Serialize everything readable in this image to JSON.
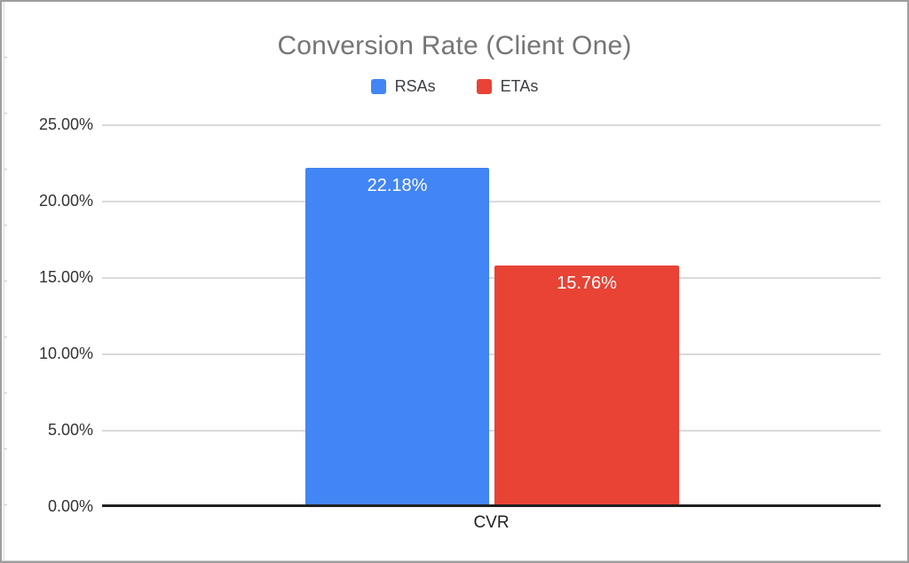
{
  "title": "Conversion Rate (Client One)",
  "chart_data": {
    "type": "bar",
    "title": "Conversion Rate (Client One)",
    "categories": [
      "CVR"
    ],
    "series": [
      {
        "name": "RSAs",
        "values": [
          22.18
        ],
        "color": "#4285f4",
        "data_label": "22.18%"
      },
      {
        "name": "ETAs",
        "values": [
          15.76
        ],
        "color": "#e84335",
        "data_label": "15.76%"
      }
    ],
    "xlabel": "CVR",
    "ylabel": "",
    "ylim": [
      0,
      25
    ],
    "ytick_step": 5,
    "ytick_labels": [
      "0.00%",
      "5.00%",
      "10.00%",
      "15.00%",
      "20.00%",
      "25.00%"
    ],
    "grid": true,
    "legend_position": "top",
    "data_labels_color": "#ffffff"
  },
  "legend": [
    {
      "label": "RSAs",
      "color": "#4285f4"
    },
    {
      "label": "ETAs",
      "color": "#e84335"
    }
  ],
  "y_axis": {
    "ticks_top_to_bottom": [
      "25.00%",
      "20.00%",
      "15.00%",
      "10.00%",
      "5.00%",
      "0.00%"
    ]
  },
  "x_axis": {
    "label": "CVR"
  },
  "data_labels": [
    "22.18%",
    "15.76%"
  ],
  "colors": {
    "rsas_bar": "#4285f4",
    "etas_bar": "#e84335",
    "title_text": "#757575",
    "axis_text": "#333333",
    "legend_text": "#3c4043",
    "gridline": "#dadada",
    "baseline": "#212121",
    "data_label_text": "#ffffff",
    "frame_border": "#9e9e9e"
  }
}
